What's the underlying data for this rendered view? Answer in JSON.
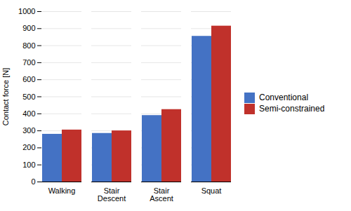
{
  "chart_data": {
    "type": "bar",
    "categories": [
      "Walking",
      "Stair\nDescent",
      "Stair\nAscent",
      "Squat"
    ],
    "series": [
      {
        "name": "Conventional",
        "color": "#4472C4",
        "values": [
          280,
          285,
          390,
          855
        ]
      },
      {
        "name": "Semi-constrained",
        "color": "#C0312B",
        "values": [
          305,
          300,
          425,
          915
        ]
      }
    ],
    "ylabel": "Contact force [N]",
    "ylim": [
      0,
      1000
    ],
    "yticks": [
      0,
      100,
      200,
      300,
      400,
      500,
      600,
      700,
      800,
      900,
      1000
    ],
    "grid": true,
    "legend": "right"
  }
}
